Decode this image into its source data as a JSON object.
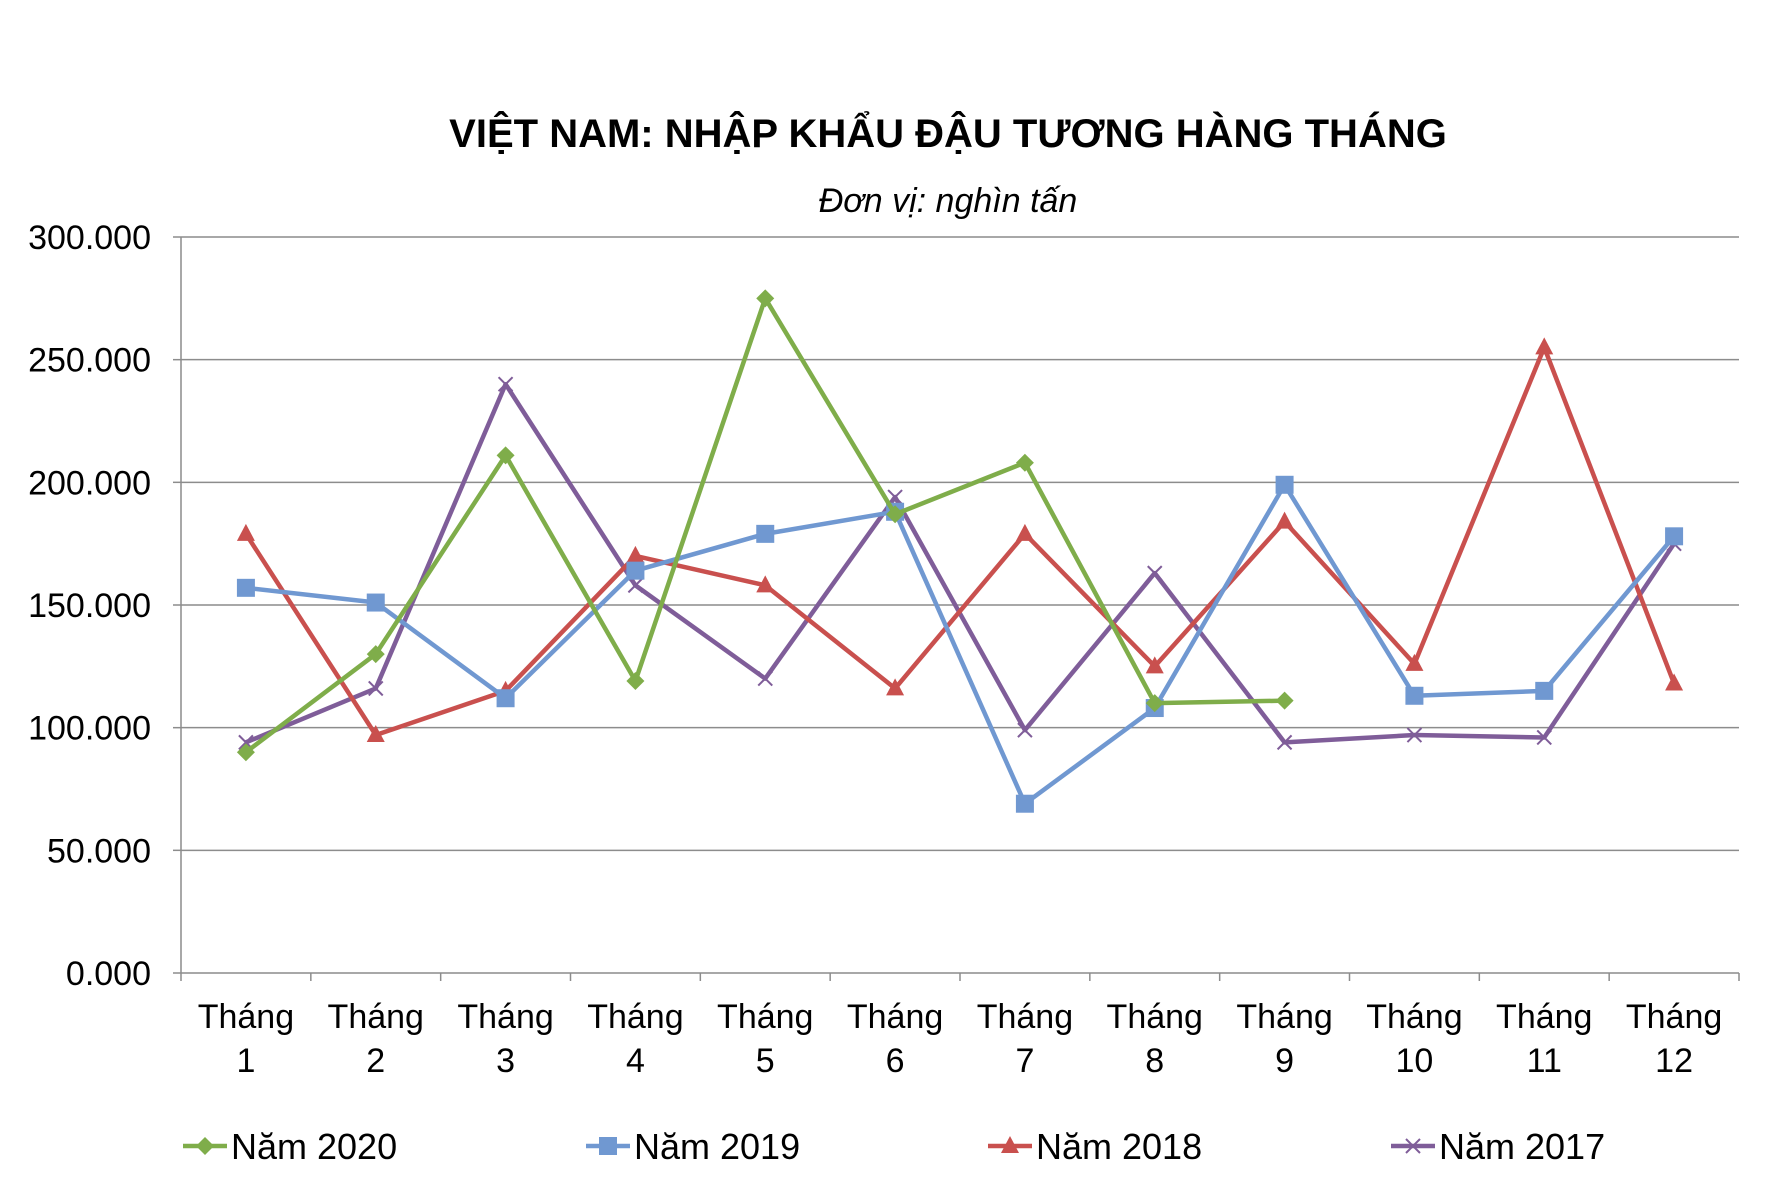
{
  "chart_data": {
    "type": "line",
    "title": "VIỆT NAM: NHẬP KHẨU ĐẬU TƯƠNG HÀNG THÁNG",
    "subtitle": "Đơn vị: nghìn tấn",
    "categories": [
      [
        "Tháng",
        "1"
      ],
      [
        "Tháng",
        "2"
      ],
      [
        "Tháng",
        "3"
      ],
      [
        "Tháng",
        "4"
      ],
      [
        "Tháng",
        "5"
      ],
      [
        "Tháng",
        "6"
      ],
      [
        "Tháng",
        "7"
      ],
      [
        "Tháng",
        "8"
      ],
      [
        "Tháng",
        "9"
      ],
      [
        "Tháng",
        "10"
      ],
      [
        "Tháng",
        "11"
      ],
      [
        "Tháng",
        "12"
      ]
    ],
    "ylim": [
      0,
      300
    ],
    "yticks": [
      0,
      50,
      100,
      150,
      200,
      250,
      300
    ],
    "ytick_labels": [
      "0.000",
      "50.000",
      "100.000",
      "150.000",
      "200.000",
      "250.000",
      "300.000"
    ],
    "grid": true,
    "legend_position": "bottom",
    "series": [
      {
        "name": "Năm 2020",
        "color": "#7fad4a",
        "marker": "diamond",
        "values": [
          90,
          130,
          211,
          119,
          275,
          187,
          208,
          110,
          111,
          null,
          null,
          null
        ]
      },
      {
        "name": "Năm 2019",
        "color": "#7098d1",
        "marker": "square",
        "values": [
          157,
          151,
          112,
          164,
          179,
          188,
          69,
          108,
          199,
          113,
          115,
          178
        ]
      },
      {
        "name": "Năm 2018",
        "color": "#c9504e",
        "marker": "triangle",
        "values": [
          179,
          97,
          115,
          170,
          158,
          116,
          179,
          125,
          184,
          126,
          255,
          118
        ]
      },
      {
        "name": "Năm 2017",
        "color": "#7f5d99",
        "marker": "x",
        "values": [
          94,
          116,
          240,
          158,
          120,
          194,
          99,
          163,
          94,
          97,
          96,
          175
        ]
      }
    ]
  }
}
